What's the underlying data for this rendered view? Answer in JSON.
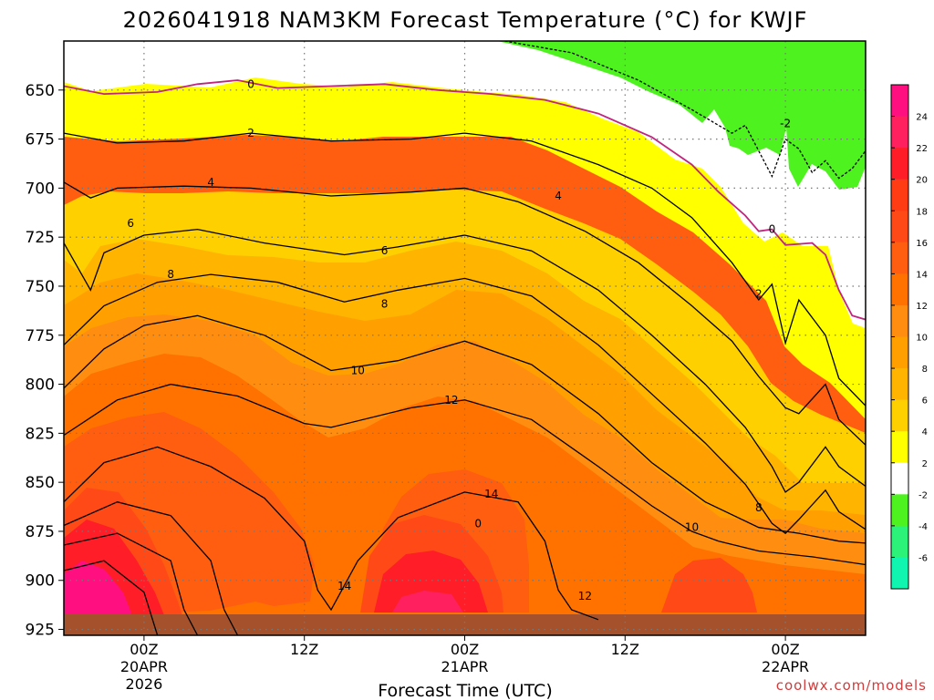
{
  "chart_data": {
    "type": "heatmap",
    "title": "2026041918 NAM3KM Forecast Temperature (°C) for KWJF",
    "xlabel": "Forecast Time (UTC)",
    "ylabel": "",
    "credit": "coolwx.com/models",
    "yaxis": {
      "range": [
        625,
        928
      ],
      "inverted": true,
      "unit": "mb",
      "ticks": [
        "650",
        "675",
        "700",
        "725",
        "750",
        "775",
        "800",
        "825",
        "850",
        "875",
        "900",
        "925"
      ]
    },
    "xaxis": {
      "range_hours": [
        0,
        60
      ],
      "ticks": [
        {
          "hour": 6,
          "lines": [
            "00Z",
            "20APR",
            "2026"
          ]
        },
        {
          "hour": 18,
          "lines": [
            "12Z"
          ]
        },
        {
          "hour": 30,
          "lines": [
            "00Z",
            "21APR"
          ]
        },
        {
          "hour": 42,
          "lines": [
            "12Z"
          ]
        },
        {
          "hour": 54,
          "lines": [
            "00Z",
            "22APR"
          ]
        }
      ]
    },
    "colorbar": {
      "labels": [
        "24",
        "22",
        "20",
        "18",
        "16",
        "14",
        "12",
        "10",
        "8",
        "6",
        "4",
        "2",
        "-2",
        "-4",
        "-6"
      ],
      "colors": [
        "#ff0f7f",
        "#ff2060",
        "#ff1e28",
        "#ff3c14",
        "#ff4a18",
        "#ff5e10",
        "#ff7200",
        "#ff8e10",
        "#ffa000",
        "#ffb400",
        "#ffd000",
        "#ffff00",
        "#ffffff",
        "#4ef21e",
        "#2cf27a",
        "#10f5b0"
      ]
    },
    "contours": [
      {
        "level": 0,
        "color": "#c0257e",
        "points": [
          [
            0,
            648
          ],
          [
            3,
            652
          ],
          [
            7,
            651
          ],
          [
            10,
            647
          ],
          [
            13,
            645
          ],
          [
            16,
            649
          ],
          [
            20,
            648
          ],
          [
            24,
            647
          ],
          [
            28,
            650
          ],
          [
            32,
            652
          ],
          [
            36,
            655
          ],
          [
            40,
            662
          ],
          [
            44,
            674
          ],
          [
            47,
            688
          ],
          [
            49,
            702
          ],
          [
            51,
            714
          ],
          [
            52,
            722
          ],
          [
            53,
            721
          ],
          [
            54,
            729
          ],
          [
            56,
            728
          ],
          [
            57,
            734
          ],
          [
            58,
            752
          ],
          [
            59,
            765
          ],
          [
            60,
            767
          ]
        ]
      },
      {
        "level": -2,
        "color": "#000000",
        "dashed": true,
        "points": [
          [
            33,
            625
          ],
          [
            38,
            631
          ],
          [
            43,
            645
          ],
          [
            47,
            660
          ],
          [
            50,
            672
          ],
          [
            51,
            668
          ],
          [
            52,
            681
          ],
          [
            53,
            694
          ],
          [
            54,
            675
          ],
          [
            55,
            680
          ],
          [
            56,
            692
          ],
          [
            57,
            686
          ],
          [
            58,
            695
          ],
          [
            59,
            690
          ],
          [
            60,
            681
          ]
        ]
      },
      {
        "level": 2,
        "color": "#000000",
        "points": [
          [
            0,
            672
          ],
          [
            4,
            677
          ],
          [
            9,
            676
          ],
          [
            14,
            672
          ],
          [
            20,
            676
          ],
          [
            26,
            675
          ],
          [
            30,
            672
          ],
          [
            35,
            676
          ],
          [
            40,
            688
          ],
          [
            44,
            700
          ],
          [
            47,
            715
          ],
          [
            50,
            738
          ],
          [
            52,
            757
          ],
          [
            53,
            749
          ],
          [
            54,
            779
          ],
          [
            55,
            757
          ],
          [
            57,
            775
          ],
          [
            58,
            797
          ],
          [
            60,
            811
          ]
        ]
      },
      {
        "level": 4,
        "color": "#000000",
        "points": [
          [
            0,
            697
          ],
          [
            2,
            705
          ],
          [
            4,
            700
          ],
          [
            9,
            699
          ],
          [
            14,
            700
          ],
          [
            20,
            704
          ],
          [
            26,
            702
          ],
          [
            30,
            700
          ],
          [
            34,
            707
          ],
          [
            39,
            722
          ],
          [
            43,
            738
          ],
          [
            47,
            760
          ],
          [
            50,
            778
          ],
          [
            52,
            796
          ],
          [
            54,
            812
          ],
          [
            55,
            815
          ],
          [
            57,
            800
          ],
          [
            58,
            818
          ],
          [
            60,
            831
          ]
        ]
      },
      {
        "level": 6,
        "color": "#000000",
        "points": [
          [
            0,
            728
          ],
          [
            2,
            752
          ],
          [
            3,
            733
          ],
          [
            6,
            724
          ],
          [
            10,
            721
          ],
          [
            15,
            728
          ],
          [
            21,
            734
          ],
          [
            25,
            730
          ],
          [
            30,
            724
          ],
          [
            35,
            732
          ],
          [
            40,
            752
          ],
          [
            44,
            775
          ],
          [
            48,
            800
          ],
          [
            51,
            822
          ],
          [
            53,
            842
          ],
          [
            54,
            855
          ],
          [
            55,
            850
          ],
          [
            57,
            832
          ],
          [
            58,
            842
          ],
          [
            60,
            852
          ]
        ]
      },
      {
        "level": 8,
        "color": "#000000",
        "points": [
          [
            0,
            780
          ],
          [
            3,
            760
          ],
          [
            7,
            748
          ],
          [
            11,
            744
          ],
          [
            16,
            748
          ],
          [
            21,
            758
          ],
          [
            25,
            752
          ],
          [
            30,
            746
          ],
          [
            35,
            755
          ],
          [
            40,
            780
          ],
          [
            44,
            805
          ],
          [
            48,
            830
          ],
          [
            51,
            851
          ],
          [
            53,
            871
          ],
          [
            54,
            876
          ],
          [
            55,
            869
          ],
          [
            57,
            854
          ],
          [
            58,
            865
          ],
          [
            60,
            874
          ]
        ]
      },
      {
        "level": 10,
        "color": "#000000",
        "points": [
          [
            0,
            802
          ],
          [
            3,
            782
          ],
          [
            6,
            770
          ],
          [
            10,
            765
          ],
          [
            15,
            775
          ],
          [
            20,
            793
          ],
          [
            25,
            788
          ],
          [
            30,
            778
          ],
          [
            35,
            790
          ],
          [
            40,
            815
          ],
          [
            44,
            840
          ],
          [
            48,
            860
          ],
          [
            52,
            873
          ],
          [
            55,
            876
          ],
          [
            58,
            880
          ],
          [
            60,
            881
          ]
        ]
      },
      {
        "level": 12,
        "color": "#000000",
        "points": [
          [
            0,
            826
          ],
          [
            4,
            808
          ],
          [
            8,
            800
          ],
          [
            13,
            806
          ],
          [
            18,
            820
          ],
          [
            20,
            822
          ],
          [
            26,
            812
          ],
          [
            30,
            808
          ],
          [
            35,
            818
          ],
          [
            40,
            842
          ],
          [
            44,
            862
          ],
          [
            47,
            875
          ],
          [
            49,
            880
          ],
          [
            52,
            885
          ],
          [
            56,
            888
          ],
          [
            60,
            892
          ]
        ]
      },
      {
        "level": 14,
        "color": "#000000",
        "points": [
          [
            0,
            860
          ],
          [
            3,
            840
          ],
          [
            7,
            832
          ],
          [
            11,
            842
          ],
          [
            15,
            858
          ],
          [
            18,
            880
          ],
          [
            19,
            905
          ],
          [
            20,
            915
          ],
          [
            22,
            890
          ],
          [
            25,
            868
          ],
          [
            30,
            855
          ],
          [
            34,
            860
          ],
          [
            36,
            880
          ],
          [
            37,
            905
          ],
          [
            38,
            915
          ],
          [
            40,
            920
          ]
        ]
      },
      {
        "level": 16,
        "color": "#000000",
        "points": [
          [
            0,
            872
          ],
          [
            4,
            860
          ],
          [
            8,
            867
          ],
          [
            11,
            890
          ],
          [
            12,
            915
          ],
          [
            13,
            928
          ]
        ]
      },
      {
        "level": 18,
        "color": "#000000",
        "points": [
          [
            0,
            882
          ],
          [
            4,
            876
          ],
          [
            8,
            890
          ],
          [
            9,
            915
          ],
          [
            10,
            928
          ]
        ]
      },
      {
        "level": 20,
        "color": "#000000",
        "points": [
          [
            0,
            895
          ],
          [
            3,
            890
          ],
          [
            6,
            906
          ],
          [
            7,
            928
          ]
        ]
      }
    ],
    "contour_labels": [
      {
        "text": "0",
        "hour": 14,
        "p": 647
      },
      {
        "text": "2",
        "hour": 14,
        "p": 672
      },
      {
        "text": "4",
        "hour": 11,
        "p": 697
      },
      {
        "text": "6",
        "hour": 5,
        "p": 718
      },
      {
        "text": "8",
        "hour": 8,
        "p": 744
      },
      {
        "text": "6",
        "hour": 24,
        "p": 732
      },
      {
        "text": "8",
        "hour": 24,
        "p": 759
      },
      {
        "text": "10",
        "hour": 22,
        "p": 793
      },
      {
        "text": "12",
        "hour": 29,
        "p": 808
      },
      {
        "text": "14",
        "hour": 32,
        "p": 856
      },
      {
        "text": "0",
        "hour": 31,
        "p": 871
      },
      {
        "text": "14",
        "hour": 21,
        "p": 903
      },
      {
        "text": "12",
        "hour": 39,
        "p": 908
      },
      {
        "text": "10",
        "hour": 47,
        "p": 873
      },
      {
        "text": "8",
        "hour": 52,
        "p": 863
      },
      {
        "text": "4",
        "hour": 37,
        "p": 704
      },
      {
        "text": "2",
        "hour": 52,
        "p": 754
      },
      {
        "text": "0",
        "hour": 53,
        "p": 721
      },
      {
        "text": "-2",
        "hour": 54,
        "p": 667
      }
    ]
  }
}
